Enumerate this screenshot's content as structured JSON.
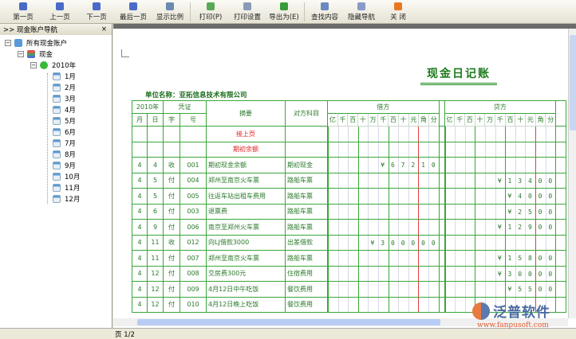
{
  "toolbar": [
    {
      "label": "第一页",
      "icon": "first-page-icon",
      "color": "#4a6ac8"
    },
    {
      "label": "上一页",
      "icon": "prev-page-icon",
      "color": "#4a6ac8"
    },
    {
      "label": "下一页",
      "icon": "next-page-icon",
      "color": "#4a6ac8"
    },
    {
      "label": "最后一页",
      "icon": "last-page-icon",
      "color": "#4a6ac8"
    },
    {
      "label": "显示比例",
      "icon": "zoom-icon",
      "color": "#6a8ab0"
    },
    {
      "label": "打印(P)",
      "icon": "print-icon",
      "color": "#58a858"
    },
    {
      "label": "打印设置",
      "icon": "print-settings-icon",
      "color": "#8a9ab8"
    },
    {
      "label": "导出为(E)",
      "icon": "export-icon",
      "color": "#3a9a3a"
    },
    {
      "label": "查找内容",
      "icon": "find-icon",
      "color": "#6a8ac0"
    },
    {
      "label": "隐藏导航",
      "icon": "hide-nav-icon",
      "color": "#8a9ac8"
    },
    {
      "label": "关 闭",
      "icon": "close-icon",
      "color": "#e87820"
    }
  ],
  "nav": {
    "title": "现金账户导航",
    "close": "×",
    "expand": ">>",
    "root": "所有现金账户",
    "account": "现金",
    "year": "2010年",
    "months": [
      "1月",
      "2月",
      "3月",
      "4月",
      "5月",
      "6月",
      "7月",
      "8月",
      "9月",
      "10月",
      "11月",
      "12月"
    ]
  },
  "report": {
    "title": "现金日记账",
    "unit": "单位名称：亚拓信息技术有限公司",
    "headers": {
      "year": "2010年",
      "voucher": "凭证",
      "month": "月",
      "day": "日",
      "type": "字",
      "no": "号",
      "summary": "摘要",
      "account": "对方科目",
      "debit": "借方",
      "credit": "贷方",
      "digits": [
        "亿",
        "千",
        "百",
        "十",
        "万",
        "千",
        "百",
        "十",
        "元",
        "角",
        "分"
      ]
    },
    "carry_forward": "接上页",
    "opening": "期初余额",
    "rows": [
      {
        "month": "4",
        "day": "4",
        "type": "收",
        "no": "001",
        "summary": "期初现金余额",
        "account": "期初现金",
        "debit": "¥67210",
        "credit": ""
      },
      {
        "month": "4",
        "day": "5",
        "type": "付",
        "no": "004",
        "summary": "郑州至南京火车票",
        "account": "路船车票",
        "debit": "",
        "credit": "¥13400"
      },
      {
        "month": "4",
        "day": "5",
        "type": "付",
        "no": "005",
        "summary": "往返车站出租车费用",
        "account": "路船车票",
        "debit": "",
        "credit": "¥4000"
      },
      {
        "month": "4",
        "day": "6",
        "type": "付",
        "no": "003",
        "summary": "退票费",
        "account": "路船车票",
        "debit": "",
        "credit": "¥2500"
      },
      {
        "month": "4",
        "day": "9",
        "type": "付",
        "no": "006",
        "summary": "南京至郑州火车票",
        "account": "路船车票",
        "debit": "",
        "credit": "¥12900"
      },
      {
        "month": "4",
        "day": "11",
        "type": "收",
        "no": "012",
        "summary": "向LJ借款3000",
        "account": "出差借款",
        "debit": "¥300000",
        "credit": ""
      },
      {
        "month": "4",
        "day": "11",
        "type": "付",
        "no": "007",
        "summary": "郑州至南京火车票",
        "account": "路船车票",
        "debit": "",
        "credit": "¥15800"
      },
      {
        "month": "4",
        "day": "12",
        "type": "付",
        "no": "008",
        "summary": "交房费300元",
        "account": "住宿费用",
        "debit": "",
        "credit": "¥30000"
      },
      {
        "month": "4",
        "day": "12",
        "type": "付",
        "no": "009",
        "summary": "4月12日中午吃饭",
        "account": "餐饮费用",
        "debit": "",
        "credit": "¥5500"
      },
      {
        "month": "4",
        "day": "12",
        "type": "付",
        "no": "010",
        "summary": "4月12日晚上吃饭",
        "account": "餐饮费用",
        "debit": "",
        "credit": ""
      }
    ]
  },
  "status": {
    "page": "页 1/2"
  },
  "watermark": {
    "name": "泛普软件",
    "url": "www.fanpusoft.com"
  },
  "colors": {
    "grid": "#3aa63a",
    "text": "#2a7a2a",
    "red_line": "#e04040",
    "title": "#1a7a1a"
  }
}
